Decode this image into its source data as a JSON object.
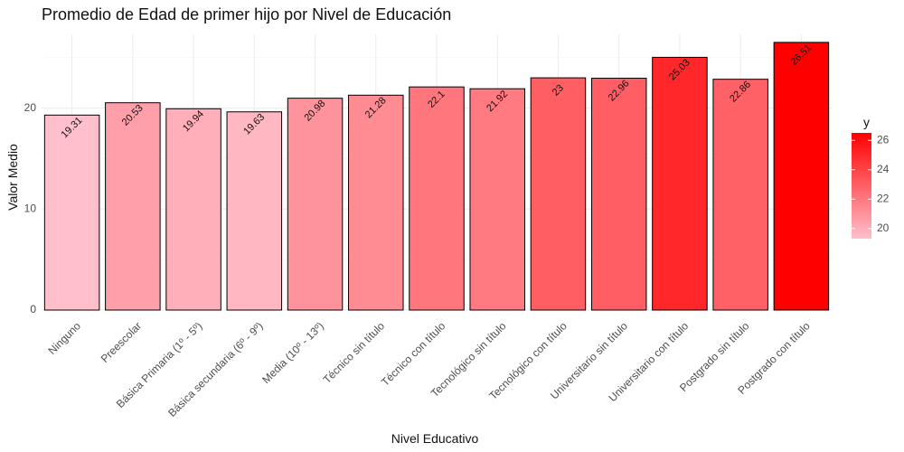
{
  "chart_data": {
    "type": "bar",
    "title": "Promedio de Edad de primer hijo por Nivel de Educación",
    "xlabel": "Nivel Educativo",
    "ylabel": "Valor Medio",
    "categories": [
      "Ninguno",
      "Preescolar",
      "Básica Primaria (1º - 5º)",
      "Básica secundaria (6º - 9º)",
      "Media (10º - 13º)",
      "Técnico sin título",
      "Técnico con título",
      "Tecnológico sin título",
      "Tecnológico con título",
      "Universitario sin título",
      "Universitario con título",
      "Postgrado sin título",
      "Postgrado con título"
    ],
    "values": [
      19.31,
      20.53,
      19.94,
      19.63,
      20.98,
      21.28,
      22.1,
      21.92,
      23,
      22.96,
      25.03,
      22.86,
      26.51
    ],
    "value_labels": [
      "19.31",
      "20.53",
      "19.94",
      "19.63",
      "20.98",
      "21.28",
      "22.1",
      "21.92",
      "23",
      "22.96",
      "25.03",
      "22.86",
      "26.51"
    ],
    "ylim": [
      0,
      27.3
    ],
    "y_ticks": [
      0,
      10,
      20
    ],
    "grid": true,
    "legend": {
      "title": "y",
      "placement": "right",
      "ticks": [
        20,
        22,
        24,
        26
      ],
      "range": [
        19.31,
        26.51
      ],
      "color_low": "#ffc0cb",
      "color_high": "#ff0000"
    },
    "bar_outline_color": "#000000"
  }
}
